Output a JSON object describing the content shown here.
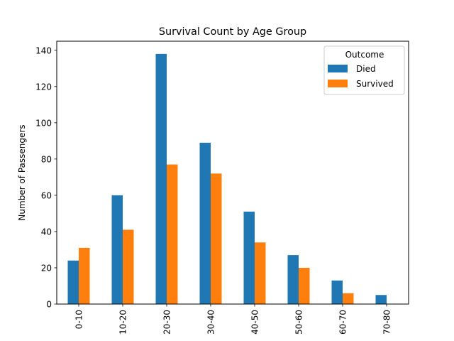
{
  "chart_data": {
    "type": "bar",
    "title": "Survival Count by Age Group",
    "xlabel": "",
    "ylabel": "Number of Passengers",
    "categories": [
      "0-10",
      "10-20",
      "20-30",
      "30-40",
      "40-50",
      "50-60",
      "60-70",
      "70-80"
    ],
    "series": [
      {
        "name": "Died",
        "color": "#1f77b4",
        "values": [
          24,
          60,
          138,
          89,
          51,
          27,
          13,
          5
        ]
      },
      {
        "name": "Survived",
        "color": "#ff7f0e",
        "values": [
          31,
          41,
          77,
          72,
          34,
          20,
          6,
          0
        ]
      }
    ],
    "ylim": [
      0,
      145
    ],
    "yticks": [
      0,
      20,
      40,
      60,
      80,
      100,
      120,
      140
    ],
    "legend": {
      "title": "Outcome",
      "position": "top-right"
    },
    "grid": false
  }
}
